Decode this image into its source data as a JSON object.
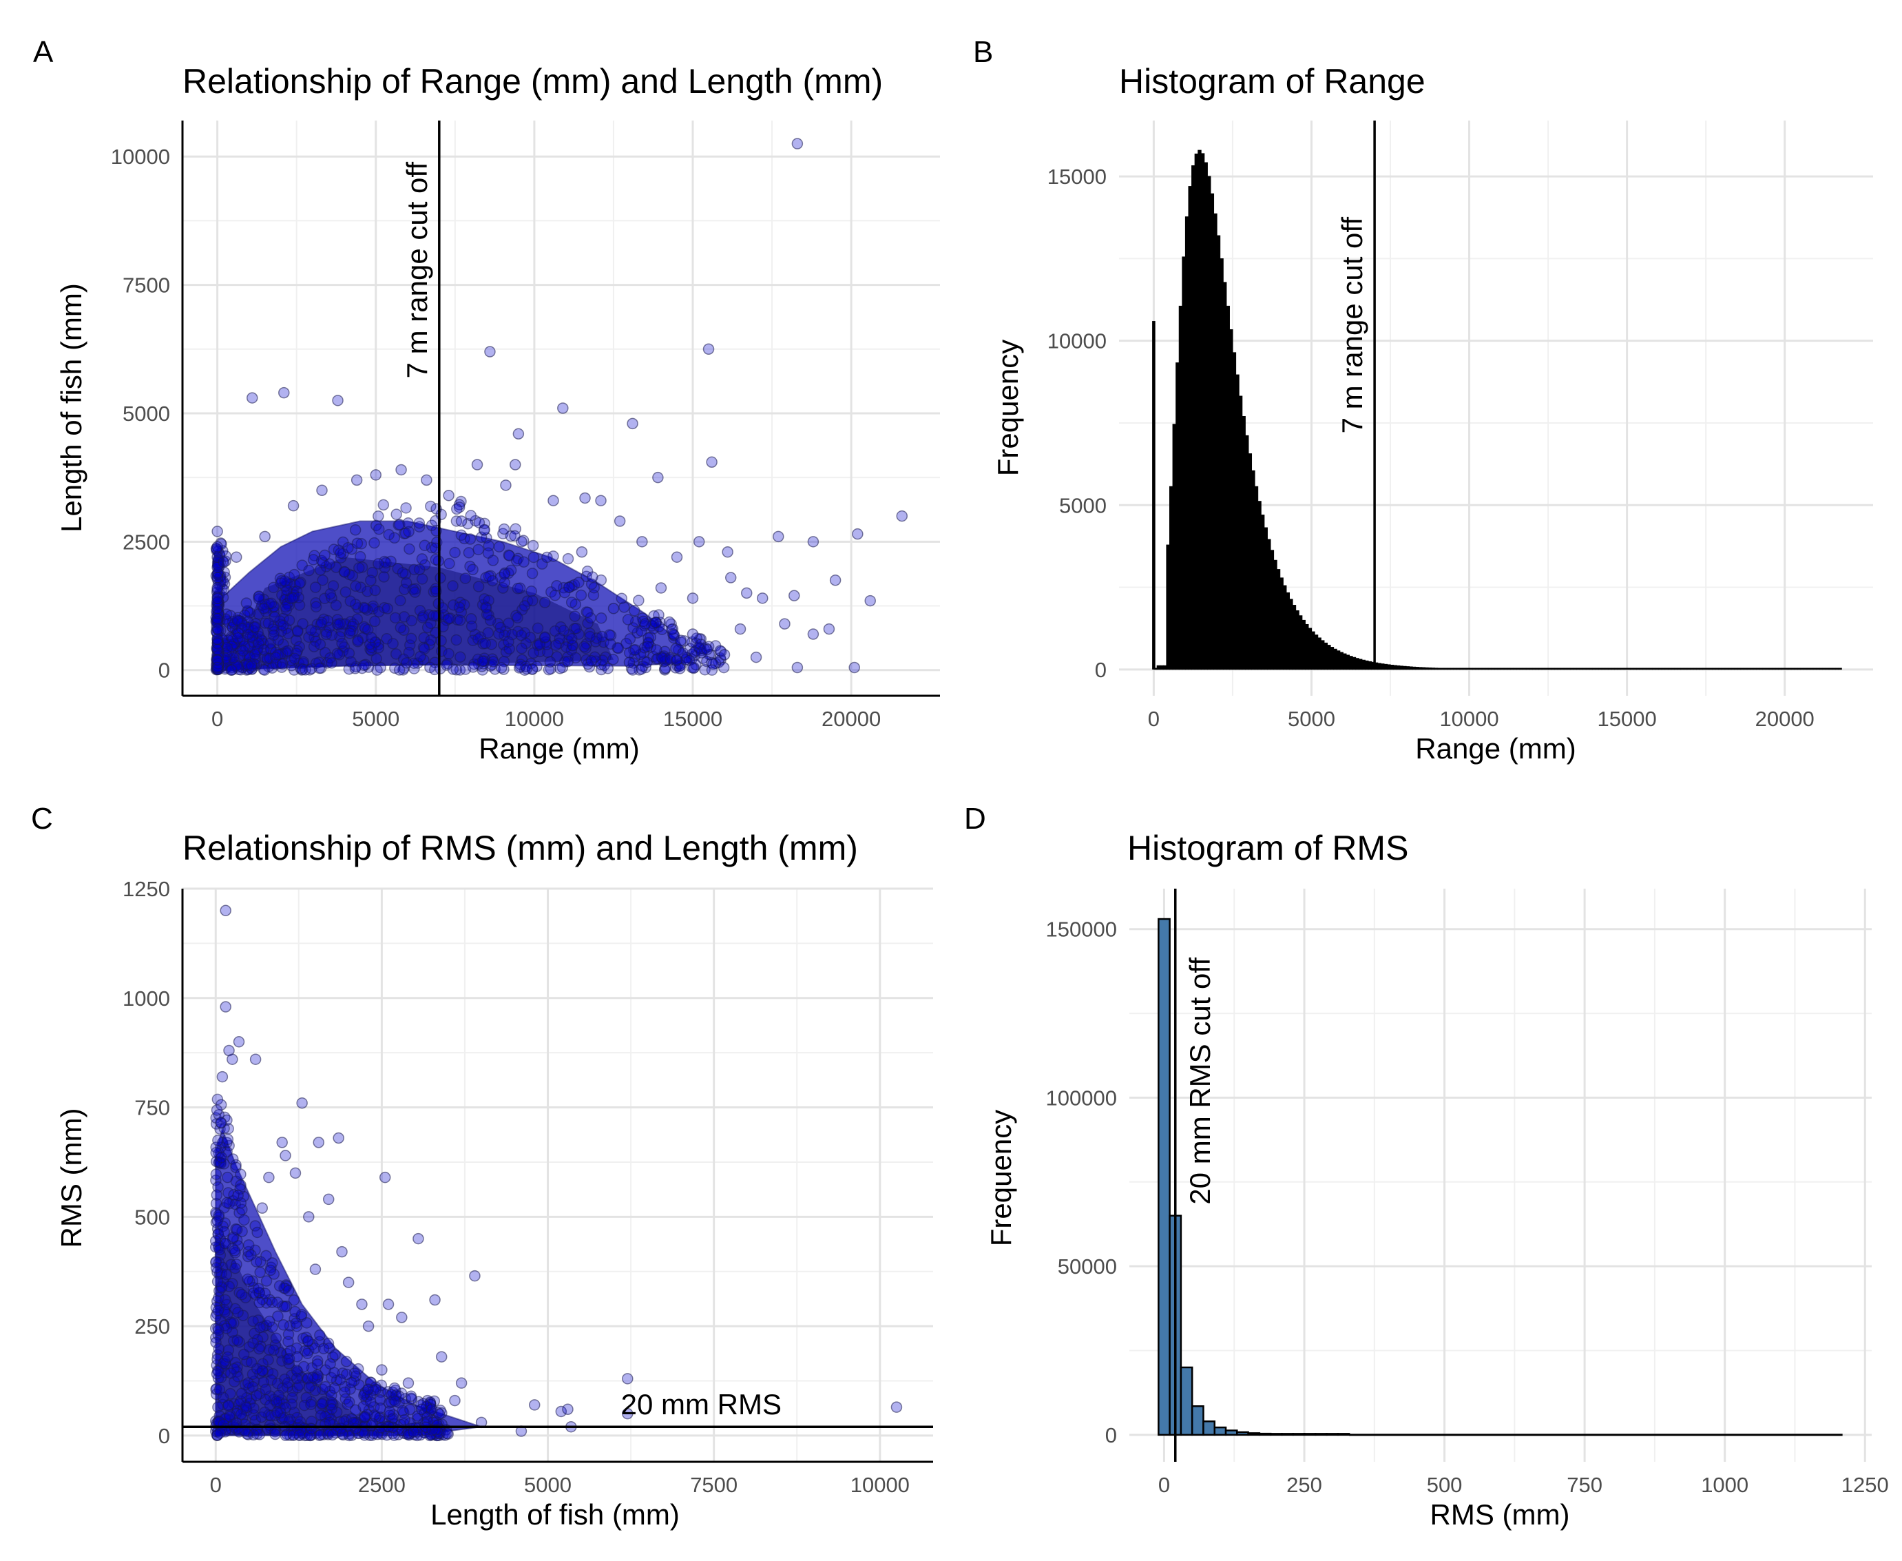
{
  "chart_data": [
    {
      "type": "scatter",
      "panel": "A",
      "title": "Relationship of Range (mm) and Length (mm)",
      "xlabel": "Range (mm)",
      "ylabel": "Length of fish (mm)",
      "xlim": [
        -1100,
        22800
      ],
      "ylim": [
        -500,
        10700
      ],
      "xticks": [
        0,
        5000,
        10000,
        15000,
        20000
      ],
      "yticks": [
        0,
        2500,
        5000,
        7500,
        10000
      ],
      "vline": {
        "x": 7000,
        "label": "7 m range cut off"
      },
      "point_color": "#0000cc",
      "grid": true,
      "points": [
        [
          18300,
          10250
        ],
        [
          8600,
          6200
        ],
        [
          15500,
          6250
        ],
        [
          1100,
          5300
        ],
        [
          2100,
          5400
        ],
        [
          3800,
          5250
        ],
        [
          10900,
          5100
        ],
        [
          13100,
          4800
        ],
        [
          9500,
          4600
        ],
        [
          15600,
          4050
        ],
        [
          13900,
          3750
        ],
        [
          8200,
          4000
        ],
        [
          9400,
          4000
        ],
        [
          4400,
          3700
        ],
        [
          5000,
          3800
        ],
        [
          6600,
          3700
        ],
        [
          7300,
          3400
        ],
        [
          9100,
          3600
        ],
        [
          10600,
          3300
        ],
        [
          11600,
          3350
        ],
        [
          12100,
          3300
        ],
        [
          17700,
          2600
        ],
        [
          18800,
          2500
        ],
        [
          20200,
          2650
        ],
        [
          21600,
          3000
        ],
        [
          16700,
          1500
        ],
        [
          17200,
          1400
        ],
        [
          18200,
          1450
        ],
        [
          19500,
          1750
        ],
        [
          20600,
          1350
        ],
        [
          17900,
          900
        ],
        [
          18800,
          700
        ],
        [
          19300,
          800
        ],
        [
          20100,
          50
        ],
        [
          18300,
          50
        ],
        [
          15000,
          1400
        ],
        [
          13400,
          2500
        ],
        [
          12700,
          2900
        ],
        [
          11500,
          2300
        ],
        [
          14500,
          2200
        ],
        [
          16200,
          1800
        ],
        [
          15200,
          2500
        ],
        [
          16100,
          2300
        ],
        [
          14000,
          1600
        ],
        [
          12500,
          1200
        ],
        [
          13500,
          900
        ],
        [
          15000,
          700
        ],
        [
          16500,
          800
        ],
        [
          17000,
          250
        ],
        [
          16000,
          300
        ],
        [
          14500,
          200
        ],
        [
          13000,
          150
        ],
        [
          11800,
          180
        ],
        [
          10500,
          160
        ],
        [
          0,
          2700
        ],
        [
          0,
          2400
        ],
        [
          0,
          2200
        ],
        [
          0,
          2000
        ],
        [
          0,
          1800
        ],
        [
          0,
          1600
        ],
        [
          0,
          1400
        ],
        [
          0,
          1200
        ],
        [
          0,
          1000
        ],
        [
          0,
          800
        ],
        [
          0,
          600
        ],
        [
          0,
          400
        ],
        [
          0,
          200
        ],
        [
          0,
          50
        ],
        [
          200,
          2100
        ],
        [
          600,
          2200
        ],
        [
          1500,
          2600
        ],
        [
          2400,
          3200
        ],
        [
          3300,
          3500
        ],
        [
          5800,
          3900
        ],
        [
          7700,
          2900
        ]
      ],
      "dense_cloud": {
        "description": "main cloud of overlapping points",
        "x_range": [
          0,
          16000
        ],
        "y_range": [
          0,
          3000
        ]
      }
    },
    {
      "type": "histogram",
      "panel": "B",
      "title": "Histogram of Range",
      "xlabel": "Range (mm)",
      "ylabel": "Frequency",
      "xlim": [
        -1100,
        22800
      ],
      "ylim": [
        -800,
        16700
      ],
      "xticks": [
        0,
        5000,
        10000,
        15000,
        20000
      ],
      "yticks": [
        0,
        5000,
        10000,
        15000
      ],
      "bin_width": 100,
      "bar_color": "#000000",
      "vline": {
        "x": 7000,
        "label": "7 m range cut off"
      },
      "grid": true,
      "peaks": [
        {
          "x": 0,
          "freq": 10600
        },
        {
          "x": 1400,
          "freq": 15800
        }
      ]
    },
    {
      "type": "scatter",
      "panel": "C",
      "title": "Relationship of RMS (mm) and Length (mm)",
      "xlabel": "Length of fish (mm)",
      "ylabel": "RMS (mm)",
      "xlim": [
        -500,
        10800
      ],
      "ylim": [
        -60,
        1250
      ],
      "xticks": [
        0,
        2500,
        5000,
        7500,
        10000
      ],
      "yticks": [
        0,
        250,
        500,
        750,
        1000,
        1250
      ],
      "hline": {
        "y": 20,
        "label": "20 mm RMS"
      },
      "point_color": "#0000cc",
      "grid": true,
      "points": [
        [
          150,
          1200
        ],
        [
          150,
          980
        ],
        [
          350,
          900
        ],
        [
          200,
          880
        ],
        [
          250,
          860
        ],
        [
          100,
          820
        ],
        [
          600,
          860
        ],
        [
          1300,
          760
        ],
        [
          1000,
          670
        ],
        [
          1050,
          640
        ],
        [
          1550,
          670
        ],
        [
          1850,
          680
        ],
        [
          2550,
          590
        ],
        [
          3050,
          450
        ],
        [
          3900,
          365
        ],
        [
          3300,
          310
        ],
        [
          2600,
          300
        ],
        [
          2300,
          250
        ],
        [
          2800,
          270
        ],
        [
          3400,
          180
        ],
        [
          3700,
          120
        ],
        [
          3600,
          80
        ],
        [
          4000,
          30
        ],
        [
          4800,
          70
        ],
        [
          5200,
          55
        ],
        [
          5300,
          60
        ],
        [
          6200,
          130
        ],
        [
          6200,
          50
        ],
        [
          10250,
          65
        ],
        [
          5350,
          20
        ],
        [
          4600,
          10
        ],
        [
          1400,
          500
        ],
        [
          1900,
          420
        ],
        [
          1700,
          540
        ],
        [
          1200,
          600
        ],
        [
          800,
          590
        ],
        [
          700,
          520
        ],
        [
          1500,
          380
        ],
        [
          2000,
          350
        ],
        [
          2200,
          300
        ],
        [
          2500,
          150
        ],
        [
          2900,
          120
        ],
        [
          3100,
          60
        ]
      ],
      "dense_cloud": {
        "description": "main cloud of overlapping points",
        "x_range": [
          0,
          3000
        ],
        "y_range": [
          0,
          700
        ]
      }
    },
    {
      "type": "histogram",
      "panel": "D",
      "title": "Histogram of RMS",
      "xlabel": "RMS (mm)",
      "ylabel": "Frequency",
      "xlim": [
        -62,
        1262
      ],
      "ylim": [
        -8000,
        162000
      ],
      "xticks": [
        0,
        250,
        500,
        750,
        1000,
        1250
      ],
      "yticks": [
        0,
        50000,
        100000,
        150000
      ],
      "bin_width": 20,
      "bar_color": "#4479aa",
      "vline": {
        "x": 20,
        "label": "20 mm RMS cut off"
      },
      "grid": true,
      "bars": [
        {
          "x": 0,
          "freq": 153000
        },
        {
          "x": 20,
          "freq": 65000
        },
        {
          "x": 40,
          "freq": 20000
        },
        {
          "x": 60,
          "freq": 8500
        },
        {
          "x": 80,
          "freq": 4000
        },
        {
          "x": 100,
          "freq": 2200
        },
        {
          "x": 120,
          "freq": 1300
        },
        {
          "x": 140,
          "freq": 800
        },
        {
          "x": 160,
          "freq": 500
        },
        {
          "x": 180,
          "freq": 350
        },
        {
          "x": 200,
          "freq": 250
        },
        {
          "x": 220,
          "freq": 180
        },
        {
          "x": 240,
          "freq": 130
        },
        {
          "x": 260,
          "freq": 100
        },
        {
          "x": 280,
          "freq": 80
        },
        {
          "x": 300,
          "freq": 60
        },
        {
          "x": 320,
          "freq": 50
        }
      ]
    }
  ]
}
